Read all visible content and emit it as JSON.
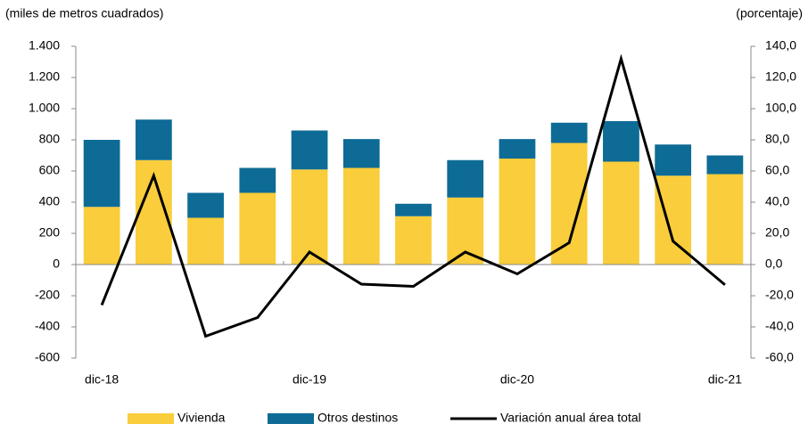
{
  "chart_data": {
    "type": "bar_line",
    "y_label": "(miles de metros cuadrados)",
    "y2_label": "(porcentaje)",
    "categories": [
      "dic-18",
      null,
      null,
      null,
      "dic-19",
      null,
      null,
      null,
      "dic-20",
      null,
      null,
      null,
      "dic-21"
    ],
    "series": [
      {
        "name": "Vivienda",
        "color": "#f9cd3b",
        "type": "bar",
        "values": [
          370,
          670,
          300,
          460,
          610,
          620,
          310,
          430,
          680,
          780,
          660,
          570,
          580
        ]
      },
      {
        "name": "Otros destinos",
        "color": "#0d6b96",
        "type": "bar",
        "values": [
          430,
          260,
          160,
          160,
          250,
          185,
          80,
          240,
          125,
          130,
          260,
          200,
          120
        ]
      },
      {
        "name": "Variación anual área total",
        "color": "#000000",
        "type": "line",
        "axis": "y2",
        "values": [
          -26,
          57,
          -46,
          -34,
          8,
          -12.6,
          -14,
          8,
          -6,
          14,
          132,
          15,
          -13
        ]
      }
    ],
    "ylim": [
      -600,
      1400
    ],
    "yticks": [
      -600,
      -400,
      -200,
      0,
      200,
      400,
      600,
      800,
      {
        "value": 1000,
        "label": "1.000"
      },
      {
        "value": 1200,
        "label": "1.200"
      },
      {
        "value": 1400,
        "label": "1.400"
      }
    ],
    "y2lim": [
      -60,
      140
    ],
    "y2ticks": [
      {
        "value": -60,
        "label": "-60,0"
      },
      {
        "value": -40,
        "label": "-40,0"
      },
      {
        "value": -20,
        "label": "-20,0"
      },
      {
        "value": 0,
        "label": "0,0"
      },
      {
        "value": 20,
        "label": "20,0"
      },
      {
        "value": 40,
        "label": "40,0"
      },
      {
        "value": 60,
        "label": "60,0"
      },
      {
        "value": 80,
        "label": "80,0"
      },
      {
        "value": 100,
        "label": "100,0"
      },
      {
        "value": 120,
        "label": "120,0"
      },
      {
        "value": 140,
        "label": "140,0"
      }
    ]
  }
}
